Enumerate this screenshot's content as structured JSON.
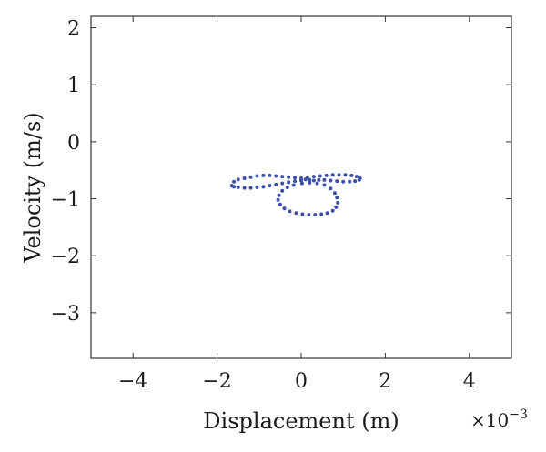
{
  "chart_data": {
    "type": "scatter",
    "title": "",
    "xlabel": "Displacement (m)",
    "ylabel": "Velocity (m/s)",
    "x_multiplier": "×10",
    "x_multiplier_exp": "−3",
    "xlim": [
      -5,
      5
    ],
    "ylim": [
      -3.8,
      2.2
    ],
    "xticks": [
      -4,
      -2,
      0,
      2,
      4
    ],
    "xtick_labels": [
      "−4",
      "−2",
      "0",
      "2",
      "4"
    ],
    "yticks": [
      -3,
      -2,
      -1,
      0,
      1,
      2
    ],
    "ytick_labels": [
      "−3",
      "−2",
      "−1",
      "0",
      "1",
      "2"
    ],
    "grid": false,
    "marker_color": "#3a4fa8",
    "series": [
      {
        "points": [
          [
            -1.65,
            -0.77
          ],
          [
            -1.6,
            -0.7
          ],
          [
            -1.5,
            -0.66
          ],
          [
            -1.35,
            -0.64
          ],
          [
            -1.2,
            -0.62
          ],
          [
            -1.05,
            -0.6
          ],
          [
            -0.9,
            -0.59
          ],
          [
            -0.75,
            -0.59
          ],
          [
            -0.6,
            -0.6
          ],
          [
            -0.45,
            -0.61
          ],
          [
            -0.3,
            -0.62
          ],
          [
            -0.15,
            -0.63
          ],
          [
            0.0,
            -0.64
          ],
          [
            0.15,
            -0.63
          ],
          [
            0.3,
            -0.61
          ],
          [
            0.45,
            -0.6
          ],
          [
            0.6,
            -0.59
          ],
          [
            0.75,
            -0.58
          ],
          [
            0.9,
            -0.58
          ],
          [
            1.05,
            -0.58
          ],
          [
            1.2,
            -0.59
          ],
          [
            1.32,
            -0.61
          ],
          [
            1.4,
            -0.64
          ],
          [
            1.38,
            -0.67
          ],
          [
            1.28,
            -0.69
          ],
          [
            1.15,
            -0.7
          ],
          [
            1.0,
            -0.7
          ],
          [
            0.85,
            -0.69
          ],
          [
            0.7,
            -0.68
          ],
          [
            0.55,
            -0.67
          ],
          [
            0.42,
            -0.67
          ],
          [
            0.3,
            -0.68
          ],
          [
            0.2,
            -0.67
          ],
          [
            0.1,
            -0.66
          ],
          [
            0.0,
            -0.68
          ],
          [
            -0.15,
            -0.69
          ],
          [
            -0.3,
            -0.71
          ],
          [
            -0.45,
            -0.73
          ],
          [
            -0.6,
            -0.75
          ],
          [
            -0.75,
            -0.77
          ],
          [
            -0.9,
            -0.79
          ],
          [
            -1.05,
            -0.8
          ],
          [
            -1.2,
            -0.81
          ],
          [
            -1.35,
            -0.81
          ],
          [
            -1.5,
            -0.8
          ],
          [
            -1.6,
            -0.79
          ],
          [
            0.02,
            -0.73
          ],
          [
            0.2,
            -0.72
          ],
          [
            0.38,
            -0.73
          ],
          [
            0.55,
            -0.76
          ],
          [
            0.7,
            -0.82
          ],
          [
            0.8,
            -0.9
          ],
          [
            0.85,
            -0.98
          ],
          [
            0.87,
            -1.07
          ],
          [
            0.83,
            -1.15
          ],
          [
            0.75,
            -1.21
          ],
          [
            0.62,
            -1.25
          ],
          [
            0.48,
            -1.27
          ],
          [
            0.33,
            -1.28
          ],
          [
            0.18,
            -1.28
          ],
          [
            0.03,
            -1.27
          ],
          [
            -0.12,
            -1.25
          ],
          [
            -0.27,
            -1.22
          ],
          [
            -0.4,
            -1.17
          ],
          [
            -0.5,
            -1.1
          ],
          [
            -0.55,
            -1.02
          ],
          [
            -0.53,
            -0.94
          ],
          [
            -0.45,
            -0.86
          ],
          [
            -0.33,
            -0.8
          ],
          [
            -0.18,
            -0.76
          ]
        ]
      }
    ]
  }
}
